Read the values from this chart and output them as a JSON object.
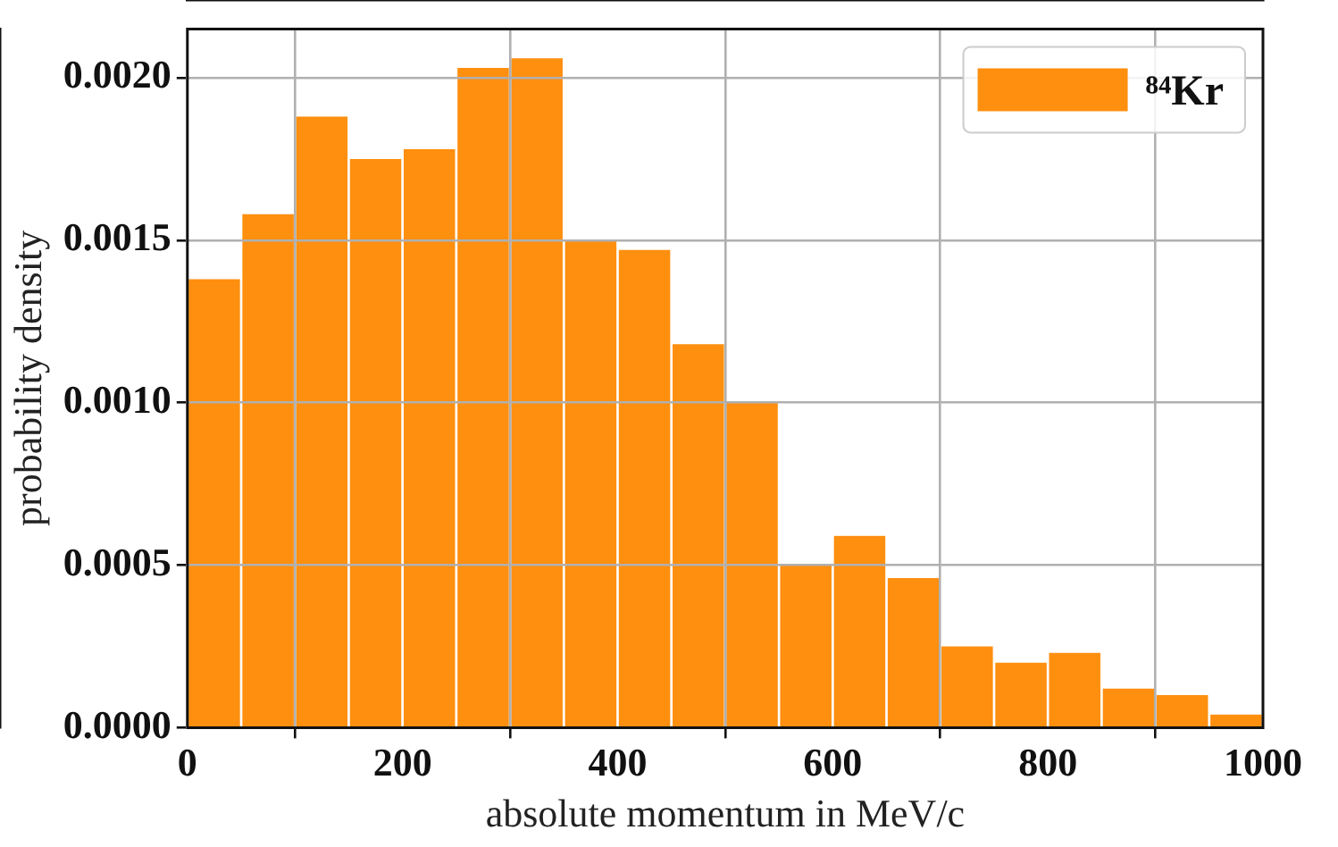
{
  "chart_data": {
    "type": "histogram",
    "xlabel": "absolute momentum in MeV/c",
    "ylabel": "probability density",
    "bins": [
      0,
      50,
      100,
      150,
      200,
      250,
      300,
      350,
      400,
      450,
      500,
      550,
      600,
      650,
      700,
      750,
      800,
      850,
      900,
      950,
      1000
    ],
    "series": [
      {
        "name": "⁸⁴Kr",
        "color": "#ff8f0f",
        "values": [
          0.00138,
          0.00158,
          0.00188,
          0.00175,
          0.00178,
          0.00203,
          0.00206,
          0.0015,
          0.00147,
          0.00118,
          0.001,
          0.0005,
          0.00059,
          0.00046,
          0.00025,
          0.0002,
          0.00023,
          0.00012,
          0.0001,
          4e-05
        ]
      }
    ],
    "xlim": [
      0,
      1000
    ],
    "xticks": [
      0,
      200,
      400,
      600,
      800,
      1000
    ],
    "ylim": [
      0,
      0.00215
    ],
    "yticks": [
      {
        "value": 0,
        "label": "0.0000"
      },
      {
        "value": 0.0005,
        "label": "0.0005"
      },
      {
        "value": 0.001,
        "label": "0.0010"
      },
      {
        "value": 0.0015,
        "label": "0.0015"
      },
      {
        "value": 0.002,
        "label": "0.0020"
      }
    ],
    "grid": true,
    "legend": "top right"
  }
}
